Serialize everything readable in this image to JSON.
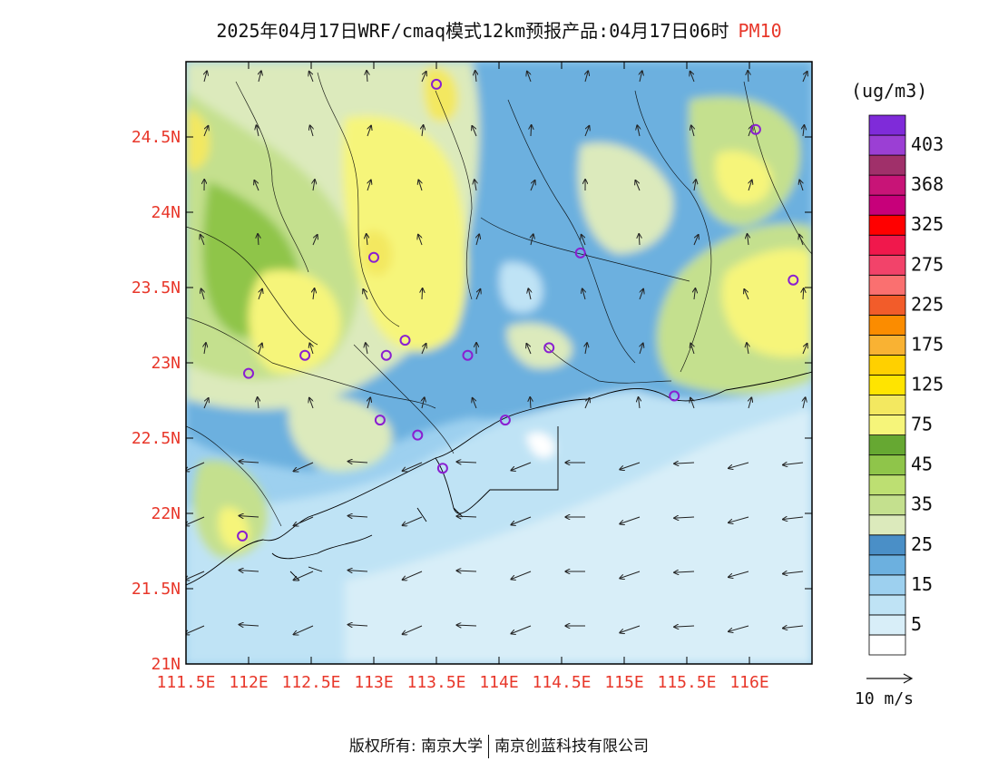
{
  "title": {
    "main": "2025年04月17日WRF/cmaq模式12km预报产品:04月17日06时",
    "pollutant": "PM10"
  },
  "colorbar": {
    "unit": "(ug/m3)",
    "levels": [
      {
        "label": "",
        "color": "#ffffff"
      },
      {
        "label": "5",
        "color": "#d8eef8"
      },
      {
        "label": "",
        "color": "#bfe3f5"
      },
      {
        "label": "15",
        "color": "#9dd0ef"
      },
      {
        "label": "",
        "color": "#6cb0df"
      },
      {
        "label": "25",
        "color": "#4a8fc7"
      },
      {
        "label": "",
        "color": "#dceabc"
      },
      {
        "label": "35",
        "color": "#c4e08e"
      },
      {
        "label": "",
        "color": "#bddf72"
      },
      {
        "label": "45",
        "color": "#8fc54a"
      },
      {
        "label": "",
        "color": "#66a832"
      },
      {
        "label": "75",
        "color": "#f6f57a"
      },
      {
        "label": "",
        "color": "#f3e860"
      },
      {
        "label": "125",
        "color": "#ffe400"
      },
      {
        "label": "",
        "color": "#ffd000"
      },
      {
        "label": "175",
        "color": "#f9b233"
      },
      {
        "label": "",
        "color": "#fb8c00"
      },
      {
        "label": "225",
        "color": "#f25c2a"
      },
      {
        "label": "",
        "color": "#fa7070"
      },
      {
        "label": "275",
        "color": "#f2436a"
      },
      {
        "label": "",
        "color": "#f0184c"
      },
      {
        "label": "325",
        "color": "#ff0000"
      },
      {
        "label": "",
        "color": "#c7007a"
      },
      {
        "label": "368",
        "color": "#c81477"
      },
      {
        "label": "",
        "color": "#a0306a"
      },
      {
        "label": "403",
        "color": "#9b3fd4"
      },
      {
        "label": "",
        "color": "#7f2bd9"
      }
    ]
  },
  "axes": {
    "x_ticks": [
      "111.5E",
      "112E",
      "112.5E",
      "113E",
      "113.5E",
      "114E",
      "114.5E",
      "115E",
      "115.5E",
      "116E"
    ],
    "y_ticks": [
      "21N",
      "21.5N",
      "22N",
      "22.5N",
      "23N",
      "23.5N",
      "24N",
      "24.5N"
    ],
    "lon_range": [
      111.5,
      116.5
    ],
    "lat_range": [
      21,
      25
    ]
  },
  "wind_reference": "10 m/s",
  "stations": [
    {
      "lon": 113.5,
      "lat": 24.85
    },
    {
      "lon": 116.05,
      "lat": 24.55
    },
    {
      "lon": 113.0,
      "lat": 23.7
    },
    {
      "lon": 114.65,
      "lat": 23.73
    },
    {
      "lon": 116.35,
      "lat": 23.55
    },
    {
      "lon": 112.0,
      "lat": 22.93
    },
    {
      "lon": 112.45,
      "lat": 23.05
    },
    {
      "lon": 113.1,
      "lat": 23.05
    },
    {
      "lon": 113.25,
      "lat": 23.15
    },
    {
      "lon": 113.75,
      "lat": 23.05
    },
    {
      "lon": 114.4,
      "lat": 23.1
    },
    {
      "lon": 113.05,
      "lat": 22.62
    },
    {
      "lon": 113.35,
      "lat": 22.52
    },
    {
      "lon": 113.55,
      "lat": 22.3
    },
    {
      "lon": 114.05,
      "lat": 22.62
    },
    {
      "lon": 115.4,
      "lat": 22.78
    },
    {
      "lon": 111.95,
      "lat": 21.85
    }
  ],
  "footer": {
    "left": "版权所有: 南京大学",
    "right": "南京创蓝科技有限公司"
  }
}
